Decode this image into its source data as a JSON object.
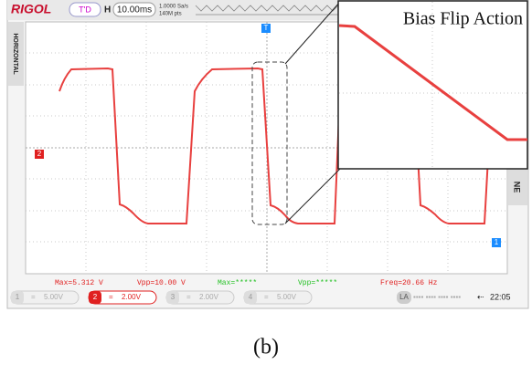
{
  "top_bar": {
    "brand": "RIGOL",
    "trigger_state": "T'D",
    "timebase_label": "H",
    "timebase": "10.00ms",
    "sample_rate": "1.0000 Sa/s",
    "memory_depth": "140M pts",
    "trigger_marker": "T"
  },
  "side_labels": {
    "left_menu": "HORIZONTAL",
    "right_menu": "NE",
    "ch2_marker": "2",
    "ch1_marker": "1"
  },
  "inset": {
    "title": "Bias Flip Action"
  },
  "measurements": [
    "Max=5.312 V",
    "Vpp=10.00 V",
    "Max=*****",
    "Vpp=*****",
    "Freq=20.66 Hz"
  ],
  "channels": [
    {
      "number": "1",
      "scale": "5.00V"
    },
    {
      "number": "2",
      "scale": "2.00V"
    },
    {
      "number": "3",
      "scale": "2.00V"
    },
    {
      "number": "4",
      "scale": "5.00V"
    }
  ],
  "status_bar": {
    "logic": "LA",
    "time": "22:05"
  },
  "caption": "(b)"
}
